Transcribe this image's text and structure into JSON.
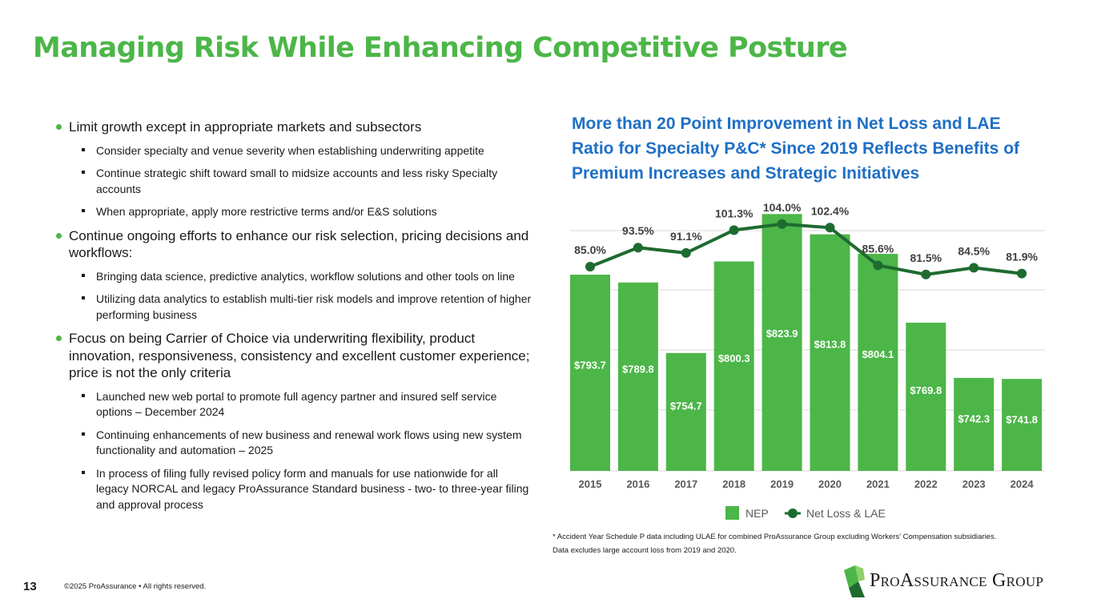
{
  "slide": {
    "title": "Managing Risk While Enhancing Competitive Posture",
    "page_number": "13",
    "copyright": "©2025 ProAssurance  •  All rights reserved."
  },
  "bullets": [
    {
      "text": "Limit growth except in appropriate markets and subsectors",
      "subs": [
        "Consider specialty and venue severity when establishing underwriting appetite",
        "Continue strategic shift toward small to midsize accounts and less risky Specialty accounts",
        "When appropriate, apply more restrictive terms and/or E&S solutions"
      ]
    },
    {
      "text": "Continue ongoing efforts to enhance our risk selection, pricing decisions and workflows:",
      "subs": [
        "Bringing data science, predictive analytics, workflow solutions and other tools on line",
        "Utilizing data analytics to establish multi-tier risk models and improve retention of higher performing business"
      ]
    },
    {
      "text": "Focus on being Carrier of Choice via underwriting flexibility, product innovation, responsiveness, consistency and excellent customer experience; price is not the only criteria",
      "subs": [
        "Launched new web portal to promote full agency partner and insured self service options – December 2024",
        "Continuing enhancements of new business and renewal work flows using new system functionality and automation – 2025",
        "In process of filing fully revised policy form and manuals for use nationwide for all legacy NORCAL and legacy ProAssurance Standard business - two- to three-year filing and approval process"
      ]
    }
  ],
  "chart_title": "More than 20 Point Improvement in Net Loss and LAE Ratio for Specialty P&C* Since 2019 Reflects Benefits of Premium Increases and Strategic Initiatives",
  "footnote": "* Accident Year Schedule P data including ULAE for combined ProAssurance Group excluding Workers' Compensation subsidiaries. Data excludes large account loss from 2019 and 2020.",
  "logo": {
    "p1": "P",
    "p2": "RO",
    "a1": "A",
    "a2": "SSURANCE",
    "g1": "G",
    "g2": "ROUP"
  },
  "colors": {
    "green": "#4cb648",
    "dark_green": "#1e6b30",
    "blue": "#1f6fc5"
  },
  "chart_data": {
    "type": "bar",
    "categories": [
      "2015",
      "2016",
      "2017",
      "2018",
      "2019",
      "2020",
      "2021",
      "2022",
      "2023",
      "2024"
    ],
    "series": [
      {
        "name": "NEP",
        "type": "bar",
        "values": [
          793.7,
          789.8,
          754.7,
          800.3,
          823.9,
          813.8,
          804.1,
          769.8,
          742.3,
          741.8
        ],
        "labels": [
          "$793.7",
          "$789.8",
          "$754.7",
          "$800.3",
          "$823.9",
          "$813.8",
          "$804.1",
          "$769.8",
          "$742.3",
          "$741.8"
        ]
      },
      {
        "name": "Net Loss & LAE",
        "type": "line",
        "values": [
          85.0,
          93.5,
          91.1,
          101.3,
          104.0,
          102.4,
          85.6,
          81.5,
          84.5,
          81.9
        ],
        "labels": [
          "85.0%",
          "93.5%",
          "91.1%",
          "101.3%",
          "104.0%",
          "102.4%",
          "85.6%",
          "81.5%",
          "84.5%",
          "81.9%"
        ]
      }
    ],
    "legend": [
      "NEP",
      "Net Loss & LAE"
    ],
    "legend_position": "bottom",
    "gridlines": true
  }
}
